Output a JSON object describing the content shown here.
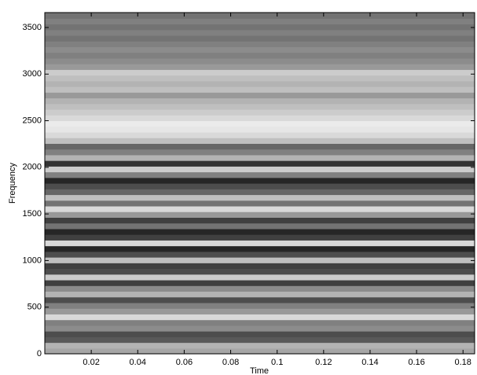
{
  "chart_data": {
    "type": "heatmap",
    "x_label": "Time",
    "y_label": "Frequency",
    "xlim": [
      0,
      0.185
    ],
    "ylim": [
      0,
      3660
    ],
    "xticks": [
      0.02,
      0.04,
      0.06,
      0.08,
      0.1,
      0.12,
      0.14,
      0.16,
      0.18
    ],
    "yticks": [
      0,
      500,
      1000,
      1500,
      2000,
      2500,
      3000,
      3500
    ],
    "colormap": "gray",
    "values": [
      0.65,
      0.7,
      0.35,
      0.3,
      0.55,
      0.5,
      0.85,
      0.6,
      0.5,
      0.3,
      0.7,
      0.55,
      0.25,
      0.8,
      0.3,
      0.25,
      0.75,
      0.3,
      0.15,
      0.85,
      0.25,
      0.15,
      0.45,
      0.25,
      0.6,
      0.85,
      0.45,
      0.75,
      0.4,
      0.3,
      0.15,
      0.5,
      0.8,
      0.2,
      0.7,
      0.5,
      0.4,
      0.75,
      0.85,
      0.9,
      0.92,
      0.85,
      0.8,
      0.75,
      0.7,
      0.6,
      0.75,
      0.7,
      0.75,
      0.8,
      0.6,
      0.55,
      0.5,
      0.55,
      0.5,
      0.45,
      0.5,
      0.45,
      0.5,
      0.45
    ]
  }
}
